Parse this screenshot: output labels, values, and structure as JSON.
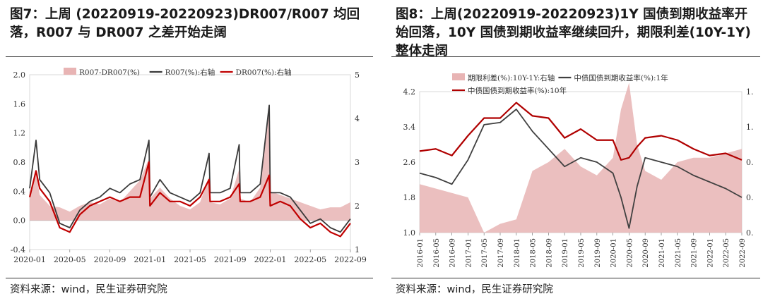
{
  "figure1": {
    "title": "图7：上周 (20220919-20220923)DR007/R007 均回落，R007 与 DR007 之差开始走阔",
    "source": "资料来源：wind，民生证券研究院",
    "chart_data": {
      "type": "line",
      "x_ticks": [
        "2020-01",
        "2020-05",
        "2020-09",
        "2021-01",
        "2021-05",
        "2021-09",
        "2022-01",
        "2022-05",
        "2022-09"
      ],
      "left_axis": {
        "ylim": [
          -0.4,
          2.0
        ],
        "ticks": [
          "-0.4",
          "0.0",
          "0.4",
          "0.8",
          "1.2",
          "1.6",
          "2.0"
        ]
      },
      "right_axis": {
        "ylim": [
          1,
          5
        ],
        "ticks": [
          "1",
          "2",
          "3",
          "4",
          "5"
        ]
      },
      "legend_position": "top",
      "series": [
        {
          "name": "R007-DR007(%)",
          "type": "bar",
          "axis": "left",
          "color": "#e8b4b4",
          "x": [
            "2020-01",
            "2020-01-20",
            "2020-02",
            "2020-03",
            "2020-04",
            "2020-05",
            "2020-06",
            "2020-07",
            "2020-08",
            "2020-09",
            "2020-10",
            "2020-11",
            "2020-12",
            "2020-12-28",
            "2021-01",
            "2021-02",
            "2021-03",
            "2021-04",
            "2021-05",
            "2021-06",
            "2021-06-28",
            "2021-07",
            "2021-08",
            "2021-09",
            "2021-09-28",
            "2021-10",
            "2021-11",
            "2021-12",
            "2021-12-28",
            "2022-01",
            "2022-02",
            "2022-03",
            "2022-04",
            "2022-05",
            "2022-06",
            "2022-07",
            "2022-08",
            "2022-09"
          ],
          "values": [
            0.3,
            0.65,
            0.35,
            0.2,
            0.18,
            0.12,
            0.2,
            0.25,
            0.22,
            0.3,
            0.25,
            0.4,
            0.55,
            0.85,
            0.3,
            0.45,
            0.3,
            0.2,
            0.15,
            0.25,
            0.6,
            0.25,
            0.22,
            0.3,
            0.7,
            0.3,
            0.25,
            0.45,
            1.55,
            0.4,
            0.35,
            0.3,
            0.25,
            0.2,
            0.15,
            0.18,
            0.18,
            0.25
          ]
        },
        {
          "name": "R007(%):右轴",
          "type": "line",
          "axis": "right",
          "color": "#3a3a3a",
          "x": [
            "2020-01",
            "2020-01-20",
            "2020-02",
            "2020-03",
            "2020-04",
            "2020-05",
            "2020-06",
            "2020-07",
            "2020-08",
            "2020-09",
            "2020-10",
            "2020-11",
            "2020-12",
            "2020-12-28",
            "2021-01",
            "2021-02",
            "2021-03",
            "2021-04",
            "2021-05",
            "2021-06",
            "2021-06-28",
            "2021-07",
            "2021-08",
            "2021-09",
            "2021-09-28",
            "2021-10",
            "2021-11",
            "2021-12",
            "2021-12-28",
            "2022-01",
            "2022-02",
            "2022-03",
            "2022-04",
            "2022-05",
            "2022-06",
            "2022-07",
            "2022-08",
            "2022-09"
          ],
          "values": [
            2.4,
            3.5,
            2.6,
            2.3,
            1.6,
            1.5,
            1.9,
            2.1,
            2.2,
            2.4,
            2.3,
            2.5,
            2.6,
            3.5,
            2.2,
            2.6,
            2.3,
            2.2,
            2.1,
            2.3,
            3.2,
            2.3,
            2.3,
            2.4,
            3.4,
            2.3,
            2.3,
            2.5,
            4.3,
            2.3,
            2.3,
            2.2,
            1.9,
            1.6,
            1.7,
            1.5,
            1.4,
            1.7
          ]
        },
        {
          "name": "DR007(%):右轴",
          "type": "line",
          "axis": "right",
          "color": "#c00000",
          "x": [
            "2020-01",
            "2020-01-20",
            "2020-02",
            "2020-03",
            "2020-04",
            "2020-05",
            "2020-06",
            "2020-07",
            "2020-08",
            "2020-09",
            "2020-10",
            "2020-11",
            "2020-12",
            "2020-12-28",
            "2021-01",
            "2021-02",
            "2021-03",
            "2021-04",
            "2021-05",
            "2021-06",
            "2021-06-28",
            "2021-07",
            "2021-08",
            "2021-09",
            "2021-09-28",
            "2021-10",
            "2021-11",
            "2021-12",
            "2021-12-28",
            "2022-01",
            "2022-02",
            "2022-03",
            "2022-04",
            "2022-05",
            "2022-06",
            "2022-07",
            "2022-08",
            "2022-09"
          ],
          "values": [
            2.2,
            2.8,
            2.4,
            2.1,
            1.5,
            1.4,
            1.8,
            2.0,
            2.1,
            2.2,
            2.1,
            2.2,
            2.2,
            3.0,
            2.0,
            2.3,
            2.1,
            2.1,
            2.0,
            2.2,
            2.6,
            2.1,
            2.1,
            2.2,
            2.5,
            2.1,
            2.1,
            2.2,
            2.7,
            2.0,
            2.1,
            2.0,
            1.7,
            1.5,
            1.6,
            1.4,
            1.3,
            1.6
          ]
        }
      ]
    }
  },
  "figure2": {
    "title": "图8：上周(20220919-20220923)1Y 国债到期收益率开始回落，10Y 国债到期收益率继续回升，期限利差(10Y-1Y)整体走阔",
    "source": "资料来源：wind，民生证券研究院",
    "chart_data": {
      "type": "line",
      "x_ticks": [
        "2016-01",
        "2016-05",
        "2016-09",
        "2017-01",
        "2017-05",
        "2017-09",
        "2018-01",
        "2018-05",
        "2018-09",
        "2019-01",
        "2019-05",
        "2019-09",
        "2020-01",
        "2020-05",
        "2020-09",
        "2021-01",
        "2021-05",
        "2021-09",
        "2022-01",
        "2022-05",
        "2022-09"
      ],
      "left_axis": {
        "ylim": [
          1.0,
          4.2
        ],
        "ticks": [
          "1.0",
          "1.8",
          "2.6",
          "3.4",
          "4.2"
        ]
      },
      "right_axis": {
        "ylim": [
          0,
          1.6
        ],
        "ticks": [
          "0.",
          "0.",
          "0.",
          "1.",
          "1."
        ]
      },
      "legend_position": "top",
      "series": [
        {
          "name": "期限利差(%):10Y-1Y:右轴",
          "type": "area",
          "axis": "right",
          "color": "#e8b4b4",
          "x": [
            "2016-01",
            "2016-05",
            "2016-09",
            "2017-01",
            "2017-05",
            "2017-09",
            "2018-01",
            "2018-05",
            "2018-09",
            "2019-01",
            "2019-05",
            "2019-09",
            "2020-01",
            "2020-03",
            "2020-05",
            "2020-07",
            "2020-09",
            "2021-01",
            "2021-05",
            "2021-09",
            "2022-01",
            "2022-05",
            "2022-09"
          ],
          "values": [
            0.55,
            0.5,
            0.45,
            0.4,
            0.0,
            0.1,
            0.15,
            0.7,
            0.8,
            0.95,
            0.75,
            0.65,
            0.85,
            1.4,
            1.7,
            1.0,
            0.7,
            0.6,
            0.8,
            0.85,
            0.85,
            0.9,
            0.95
          ]
        },
        {
          "name": "中债国债到期收益率(%):1年",
          "type": "line",
          "axis": "left",
          "color": "#404040",
          "x": [
            "2016-01",
            "2016-05",
            "2016-09",
            "2017-01",
            "2017-05",
            "2017-09",
            "2018-01",
            "2018-05",
            "2018-09",
            "2019-01",
            "2019-05",
            "2019-09",
            "2020-01",
            "2020-03",
            "2020-05",
            "2020-07",
            "2020-09",
            "2021-01",
            "2021-05",
            "2021-09",
            "2022-01",
            "2022-05",
            "2022-09"
          ],
          "values": [
            2.35,
            2.25,
            2.1,
            2.65,
            3.45,
            3.5,
            3.8,
            3.3,
            2.9,
            2.5,
            2.7,
            2.6,
            2.35,
            1.8,
            1.1,
            2.05,
            2.7,
            2.6,
            2.5,
            2.3,
            2.15,
            2.0,
            1.8
          ]
        },
        {
          "name": "中债国债到期收益率(%):10年",
          "type": "line",
          "axis": "left",
          "color": "#b00000",
          "x": [
            "2016-01",
            "2016-05",
            "2016-09",
            "2017-01",
            "2017-05",
            "2017-09",
            "2018-01",
            "2018-05",
            "2018-09",
            "2019-01",
            "2019-05",
            "2019-09",
            "2020-01",
            "2020-03",
            "2020-05",
            "2020-07",
            "2020-09",
            "2021-01",
            "2021-05",
            "2021-09",
            "2022-01",
            "2022-05",
            "2022-09"
          ],
          "values": [
            2.85,
            2.9,
            2.75,
            3.2,
            3.6,
            3.6,
            3.95,
            3.65,
            3.6,
            3.15,
            3.35,
            3.1,
            3.1,
            2.65,
            2.7,
            2.95,
            3.15,
            3.2,
            3.1,
            2.9,
            2.75,
            2.8,
            2.65
          ]
        }
      ]
    }
  }
}
